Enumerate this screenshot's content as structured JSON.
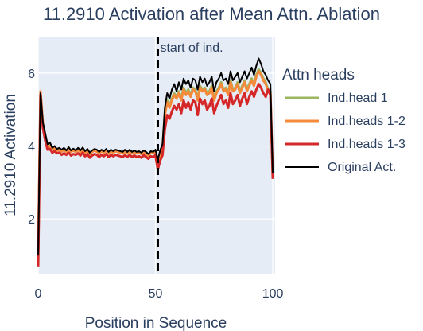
{
  "chart_data": {
    "type": "line",
    "title": "11.2910 Activation after Mean Attn. Ablation",
    "xlabel": "Position in Sequence",
    "ylabel": "11.2910 Activation",
    "xlim": [
      0,
      101
    ],
    "ylim": [
      0.5,
      7.0
    ],
    "x_ticks": [
      0,
      50,
      100
    ],
    "x_tick_labels": [
      "0",
      "50",
      "100"
    ],
    "y_ticks": [
      2,
      4,
      6
    ],
    "y_tick_labels": [
      "2",
      "4",
      "6"
    ],
    "grid": true,
    "plot_bgcolor": "#e5ecf6",
    "legend": {
      "title": "Attn heads",
      "placement": "right"
    },
    "annotation": {
      "text": "start of ind.",
      "x": 51,
      "style": "dashed-vertical-line",
      "color": "#000000"
    },
    "series": [
      {
        "name": "Ind.head 1",
        "color": "#9ab65f",
        "values": [
          1.0,
          5.45,
          4.6,
          4.3,
          3.98,
          4.02,
          3.92,
          3.96,
          3.88,
          3.9,
          3.85,
          3.9,
          3.85,
          3.92,
          3.85,
          3.88,
          3.84,
          3.9,
          3.84,
          3.92,
          3.82,
          3.88,
          3.78,
          3.84,
          3.88,
          3.85,
          3.8,
          3.86,
          3.82,
          3.88,
          3.8,
          3.86,
          3.82,
          3.86,
          3.84,
          3.82,
          3.8,
          3.85,
          3.8,
          3.86,
          3.8,
          3.84,
          3.8,
          3.82,
          3.78,
          3.85,
          3.8,
          3.74,
          3.82,
          3.8,
          3.86,
          3.55,
          3.8,
          3.95,
          4.9,
          5.25,
          5.1,
          5.3,
          5.45,
          5.35,
          5.5,
          5.3,
          5.6,
          5.45,
          5.55,
          5.4,
          5.6,
          5.55,
          5.3,
          5.65,
          5.55,
          5.6,
          5.45,
          5.5,
          5.65,
          5.3,
          5.5,
          5.6,
          5.75,
          5.55,
          5.6,
          5.45,
          5.8,
          5.55,
          5.6,
          5.75,
          5.5,
          5.65,
          5.8,
          5.55,
          5.7,
          5.85,
          5.7,
          5.95,
          6.1,
          6.0,
          5.85,
          5.75,
          5.55,
          5.5,
          3.2
        ]
      },
      {
        "name": "Ind.heads 1-2",
        "color": "#f58a3a",
        "values": [
          0.9,
          5.5,
          4.62,
          4.28,
          3.98,
          4.0,
          3.92,
          3.95,
          3.87,
          3.9,
          3.85,
          3.9,
          3.84,
          3.92,
          3.84,
          3.88,
          3.84,
          3.9,
          3.83,
          3.92,
          3.82,
          3.88,
          3.77,
          3.84,
          3.88,
          3.85,
          3.8,
          3.86,
          3.82,
          3.88,
          3.8,
          3.86,
          3.82,
          3.86,
          3.84,
          3.82,
          3.8,
          3.85,
          3.8,
          3.86,
          3.8,
          3.84,
          3.8,
          3.82,
          3.78,
          3.84,
          3.8,
          3.73,
          3.82,
          3.8,
          3.86,
          3.5,
          3.78,
          3.92,
          4.85,
          5.2,
          5.05,
          5.25,
          5.4,
          5.3,
          5.45,
          5.25,
          5.55,
          5.4,
          5.5,
          5.35,
          5.55,
          5.5,
          5.25,
          5.6,
          5.5,
          5.55,
          5.4,
          5.45,
          5.6,
          5.25,
          5.45,
          5.55,
          5.7,
          5.5,
          5.55,
          5.4,
          5.75,
          5.5,
          5.55,
          5.7,
          5.45,
          5.6,
          5.75,
          5.5,
          5.65,
          5.8,
          5.65,
          5.9,
          6.05,
          5.95,
          5.8,
          5.7,
          5.5,
          5.45,
          3.15
        ]
      },
      {
        "name": "Ind.heads 1-3",
        "color": "#d62728",
        "values": [
          0.7,
          5.4,
          4.5,
          4.15,
          3.9,
          3.92,
          3.82,
          3.86,
          3.8,
          3.82,
          3.76,
          3.8,
          3.76,
          3.82,
          3.74,
          3.78,
          3.76,
          3.8,
          3.74,
          3.82,
          3.72,
          3.78,
          3.68,
          3.74,
          3.78,
          3.76,
          3.7,
          3.76,
          3.72,
          3.78,
          3.7,
          3.76,
          3.72,
          3.76,
          3.74,
          3.72,
          3.7,
          3.75,
          3.7,
          3.76,
          3.7,
          3.74,
          3.7,
          3.72,
          3.68,
          3.75,
          3.7,
          3.65,
          3.72,
          3.7,
          3.75,
          3.35,
          3.6,
          3.75,
          4.45,
          4.85,
          4.75,
          4.95,
          5.1,
          5.0,
          5.15,
          4.9,
          5.25,
          5.05,
          5.2,
          5.0,
          5.25,
          5.2,
          4.85,
          5.3,
          5.15,
          5.25,
          5.0,
          5.1,
          5.3,
          4.9,
          5.1,
          5.25,
          5.4,
          5.15,
          5.25,
          5.05,
          5.45,
          5.15,
          5.25,
          5.4,
          5.1,
          5.3,
          5.45,
          5.15,
          5.35,
          5.5,
          5.35,
          5.55,
          5.7,
          5.6,
          5.45,
          5.35,
          5.55,
          5.4,
          3.1
        ]
      },
      {
        "name": "Original Act.",
        "color": "#000000",
        "values": [
          1.0,
          5.45,
          4.65,
          4.35,
          4.05,
          4.1,
          3.95,
          4.0,
          3.92,
          3.95,
          3.9,
          3.95,
          3.88,
          3.97,
          3.88,
          3.93,
          3.88,
          3.95,
          3.88,
          3.96,
          3.86,
          3.92,
          3.82,
          3.88,
          3.92,
          3.9,
          3.84,
          3.9,
          3.86,
          3.92,
          3.84,
          3.9,
          3.86,
          3.9,
          3.88,
          3.86,
          3.84,
          3.9,
          3.84,
          3.9,
          3.84,
          3.88,
          3.84,
          3.86,
          3.82,
          3.88,
          3.84,
          3.78,
          3.86,
          3.84,
          3.9,
          3.62,
          3.88,
          4.05,
          5.05,
          5.45,
          5.3,
          5.55,
          5.7,
          5.5,
          5.75,
          5.55,
          5.85,
          5.7,
          5.8,
          5.6,
          5.85,
          5.8,
          5.55,
          5.9,
          5.75,
          5.85,
          5.65,
          5.75,
          5.9,
          5.5,
          5.75,
          5.85,
          6.0,
          5.8,
          5.85,
          5.7,
          6.05,
          5.8,
          5.9,
          6.0,
          5.75,
          5.9,
          6.05,
          5.85,
          6.0,
          6.15,
          5.95,
          6.2,
          6.4,
          6.25,
          6.05,
          5.95,
          5.8,
          5.7,
          3.25
        ]
      }
    ]
  }
}
